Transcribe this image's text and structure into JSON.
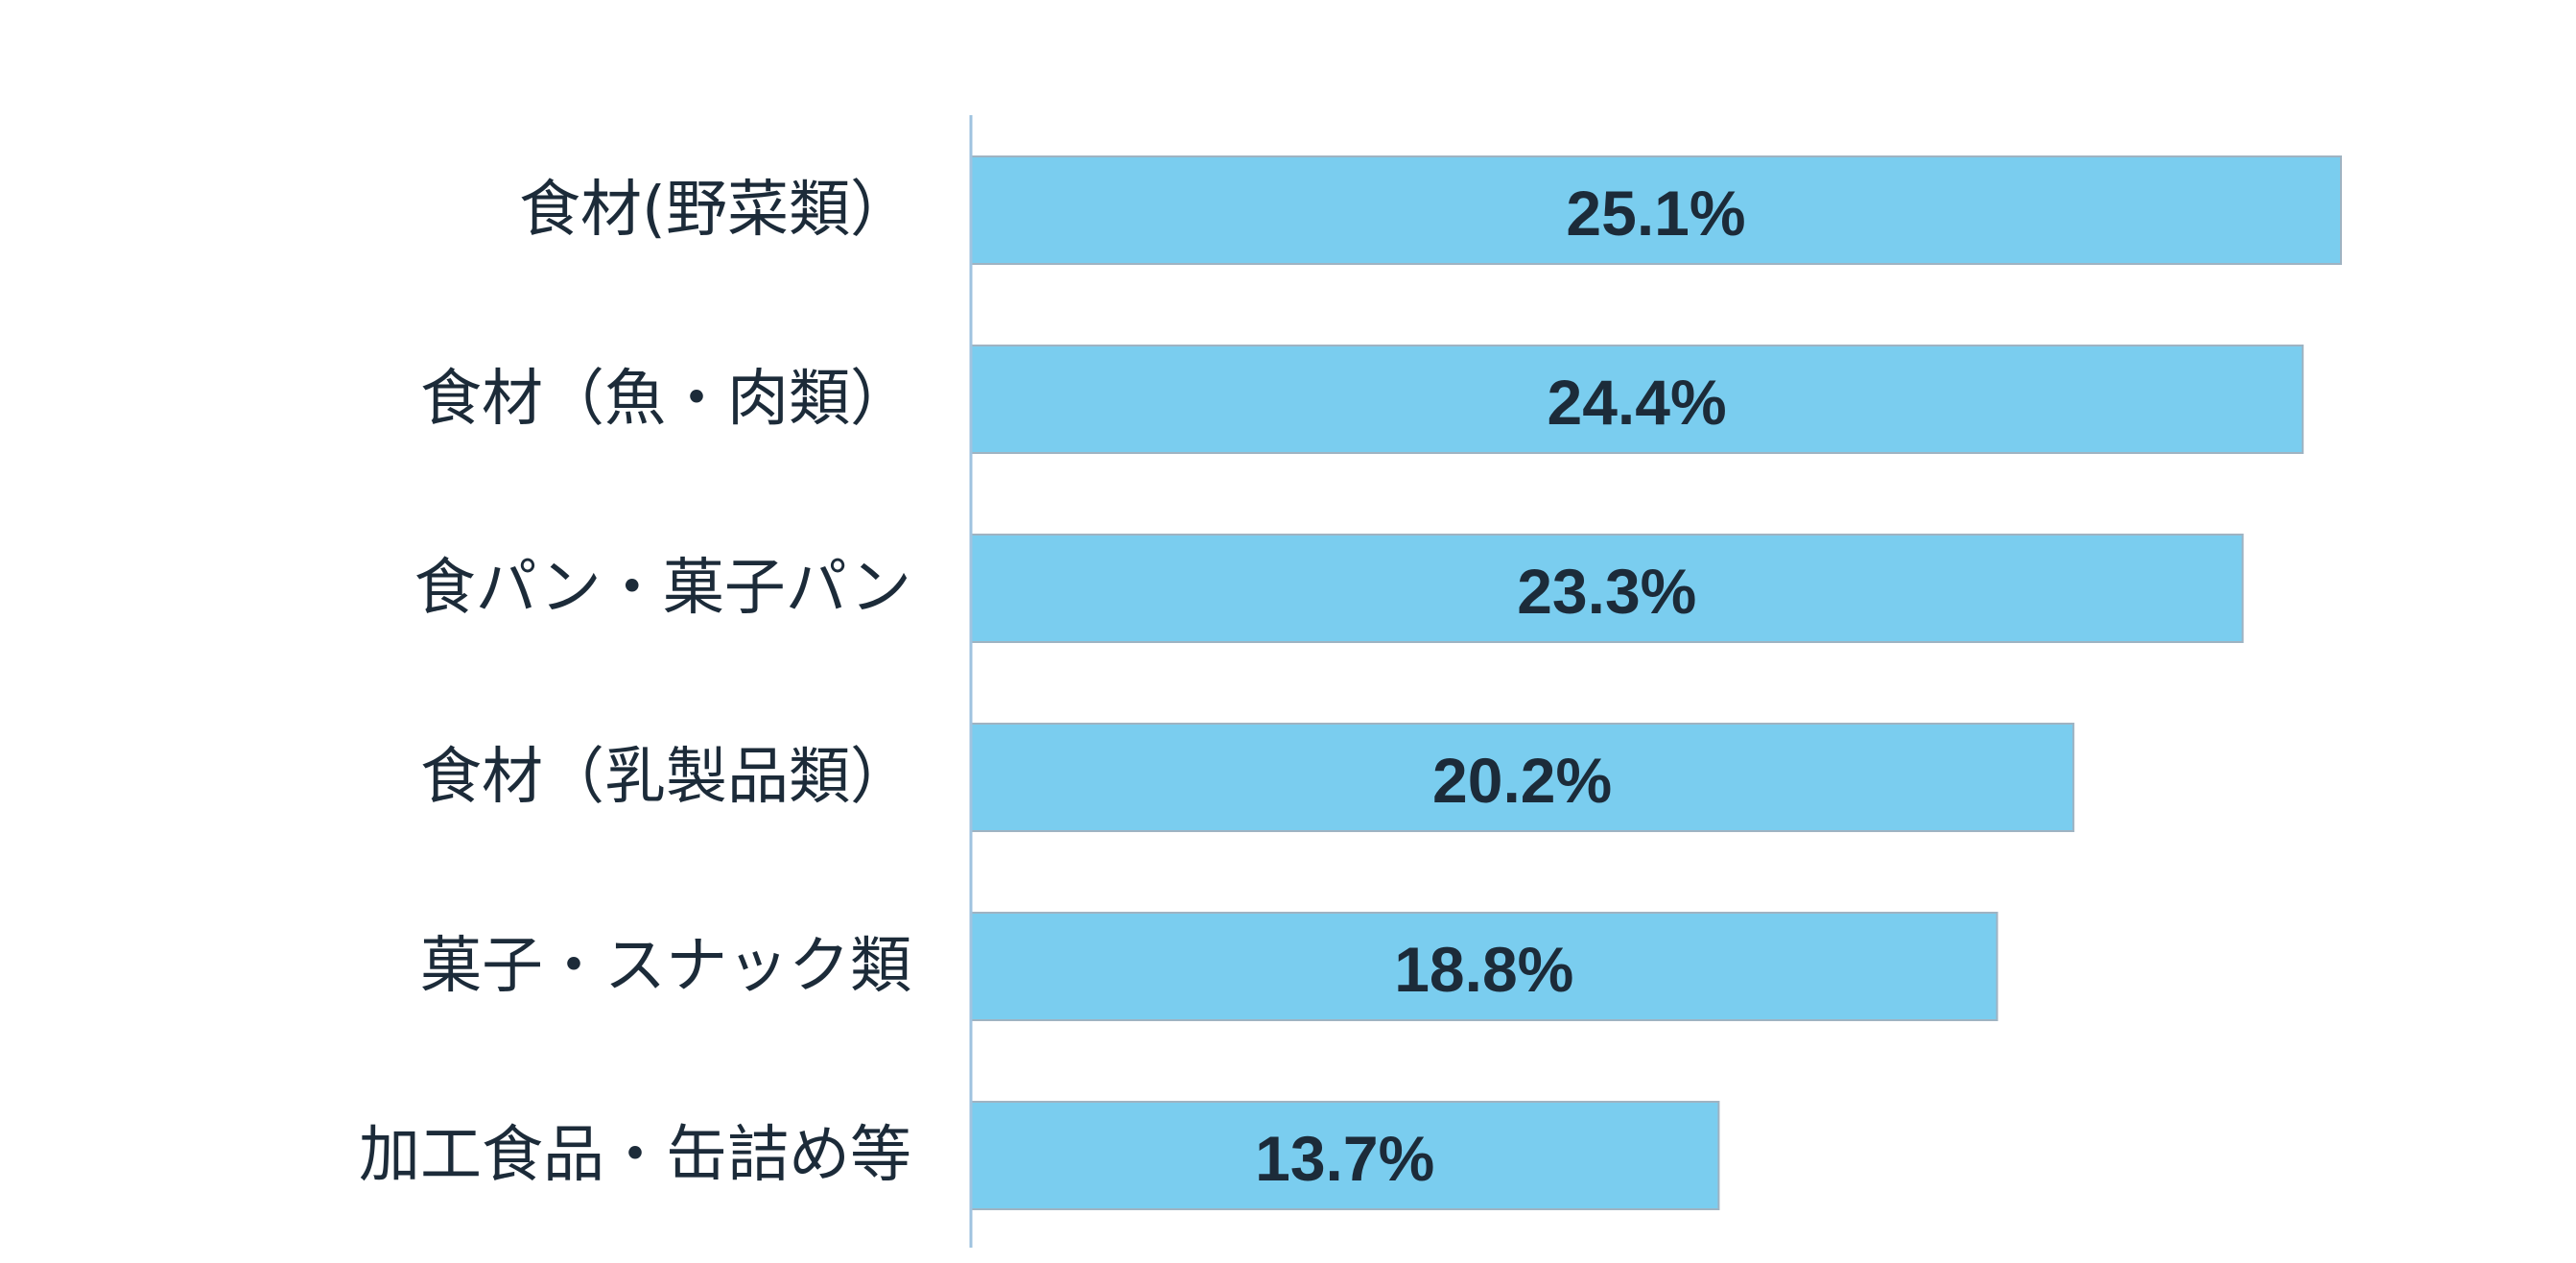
{
  "chart_data": {
    "type": "bar",
    "orientation": "horizontal",
    "categories": [
      "食材(野菜類）",
      "食材（魚・肉類）",
      "食パン・菓子パン",
      "食材（乳製品類）",
      "菓子・スナック類",
      "加工食品・缶詰め等"
    ],
    "values": [
      25.1,
      24.4,
      23.3,
      20.2,
      18.8,
      13.7
    ],
    "data_labels": [
      "25.1%",
      "24.4%",
      "23.3%",
      "20.2%",
      "18.8%",
      "13.7%"
    ],
    "unit": "%",
    "xlim": [
      0,
      25.1
    ],
    "grid": false,
    "legend": "none",
    "colors": {
      "bar": "#7acdef",
      "text": "#1c2b39",
      "axis": "#9fc3df"
    }
  }
}
